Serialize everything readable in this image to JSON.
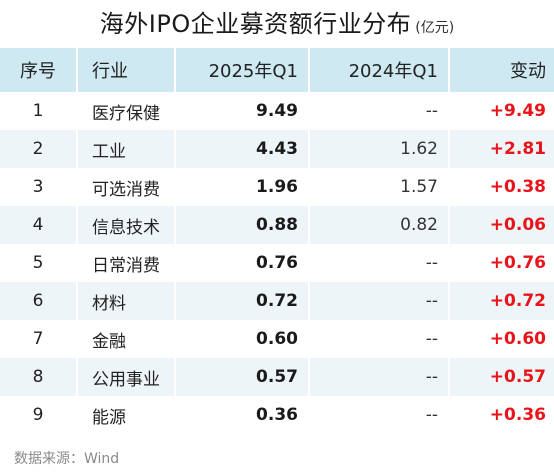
{
  "title": {
    "main": "海外IPO企业募资额行业分布",
    "unit": "(亿元)"
  },
  "table": {
    "headers": [
      "序号",
      "行业",
      "2025年Q1",
      "2024年Q1",
      "变动"
    ],
    "rows": [
      [
        "1",
        "医疗保健",
        "9.49",
        "--",
        "+9.49"
      ],
      [
        "2",
        "工业",
        "4.43",
        "1.62",
        "+2.81"
      ],
      [
        "3",
        "可选消费",
        "1.96",
        "1.57",
        "+0.38"
      ],
      [
        "4",
        "信息技术",
        "0.88",
        "0.82",
        "+0.06"
      ],
      [
        "5",
        "日常消费",
        "0.76",
        "--",
        "+0.76"
      ],
      [
        "6",
        "材料",
        "0.72",
        "--",
        "+0.72"
      ],
      [
        "7",
        "金融",
        "0.60",
        "--",
        "+0.60"
      ],
      [
        "8",
        "公用事业",
        "0.57",
        "--",
        "+0.57"
      ],
      [
        "9",
        "能源",
        "0.36",
        "--",
        "+0.36"
      ]
    ]
  },
  "source": "数据来源：Wind",
  "colors": {
    "header_bg": "#cfe9f3",
    "stripe_bg": "#eef5f8",
    "change_text": "#e8141a"
  }
}
